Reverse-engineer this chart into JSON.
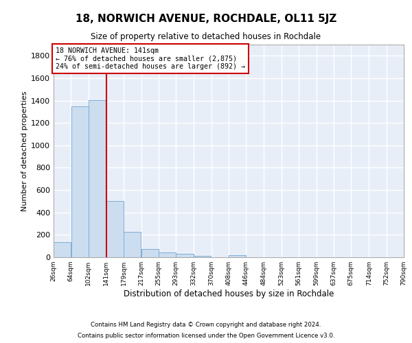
{
  "title": "18, NORWICH AVENUE, ROCHDALE, OL11 5JZ",
  "subtitle": "Size of property relative to detached houses in Rochdale",
  "xlabel": "Distribution of detached houses by size in Rochdale",
  "ylabel": "Number of detached properties",
  "bar_color": "#ccddf0",
  "bar_edge_color": "#7bafd4",
  "vline_color": "#cc0000",
  "vline_x": 141,
  "bin_edges": [
    26,
    64,
    102,
    141,
    179,
    217,
    255,
    293,
    332,
    370,
    408,
    446,
    484,
    523,
    561,
    599,
    637,
    675,
    714,
    752,
    790
  ],
  "bar_heights": [
    135,
    1350,
    1405,
    500,
    225,
    75,
    45,
    28,
    15,
    0,
    20,
    0,
    0,
    0,
    0,
    0,
    0,
    0,
    0,
    0
  ],
  "ylim": [
    0,
    1900
  ],
  "yticks": [
    0,
    200,
    400,
    600,
    800,
    1000,
    1200,
    1400,
    1600,
    1800
  ],
  "annotation_title": "18 NORWICH AVENUE: 141sqm",
  "annotation_line1": "← 76% of detached houses are smaller (2,875)",
  "annotation_line2": "24% of semi-detached houses are larger (892) →",
  "annotation_box_facecolor": "#ffffff",
  "annotation_box_edgecolor": "#cc0000",
  "background_color": "#e8eef8",
  "grid_color": "#ffffff",
  "fig_facecolor": "#ffffff",
  "footer_line1": "Contains HM Land Registry data © Crown copyright and database right 2024.",
  "footer_line2": "Contains public sector information licensed under the Open Government Licence v3.0."
}
